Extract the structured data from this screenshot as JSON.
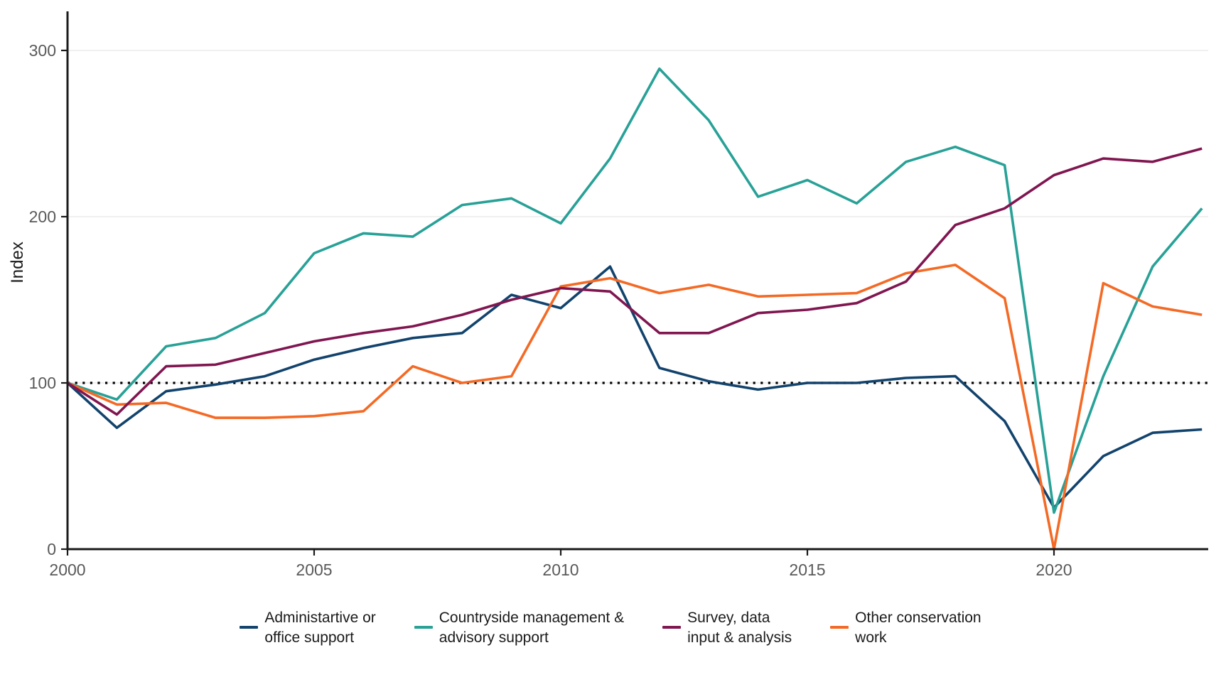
{
  "chart_data": {
    "type": "line",
    "title": "",
    "xlabel": "",
    "ylabel": "Index",
    "x": [
      2000,
      2001,
      2002,
      2003,
      2004,
      2005,
      2006,
      2007,
      2008,
      2009,
      2010,
      2011,
      2012,
      2013,
      2014,
      2015,
      2016,
      2017,
      2018,
      2019,
      2020,
      2021,
      2022,
      2023
    ],
    "x_ticks": [
      2000,
      2005,
      2010,
      2015,
      2020
    ],
    "y_ticks": [
      0,
      100,
      200,
      300
    ],
    "xlim": [
      2000,
      2023
    ],
    "ylim": [
      0,
      310
    ],
    "grid": "horizontal-major-only",
    "legend_position": "bottom",
    "reference_line": {
      "y": 100,
      "style": "dotted",
      "color": "#000000"
    },
    "series": [
      {
        "id": "administrative-or-office-support",
        "name": "Administartive or office support",
        "legend_label": "Administartive or\n office support",
        "color": "#12436D",
        "values": [
          100,
          73,
          95,
          99,
          104,
          114,
          121,
          127,
          130,
          153,
          145,
          170,
          109,
          101,
          96,
          100,
          100,
          103,
          104,
          77,
          25,
          56,
          70,
          72
        ]
      },
      {
        "id": "countryside-management-advisory-support",
        "name": "Countryside management & advisory support",
        "legend_label": "Countryside management &\n advisory support",
        "color": "#28A197",
        "values": [
          100,
          90,
          122,
          127,
          142,
          178,
          190,
          188,
          207,
          211,
          196,
          235,
          289,
          258,
          212,
          222,
          208,
          233,
          242,
          231,
          22,
          104,
          170,
          205
        ]
      },
      {
        "id": "survey-data-input-analysis",
        "name": "Survey, data input & analysis",
        "legend_label": "Survey, data\n input & analysis",
        "color": "#801650",
        "values": [
          100,
          81,
          110,
          111,
          118,
          125,
          130,
          134,
          141,
          150,
          157,
          155,
          130,
          130,
          142,
          144,
          148,
          161,
          195,
          205,
          225,
          235,
          233,
          241
        ]
      },
      {
        "id": "other-conservation-work",
        "name": "Other conservation work",
        "legend_label": "Other conservation\n work",
        "color": "#F46A25",
        "values": [
          100,
          87,
          88,
          79,
          79,
          80,
          83,
          110,
          100,
          104,
          158,
          163,
          154,
          159,
          152,
          153,
          154,
          166,
          171,
          151,
          0,
          160,
          146,
          141
        ]
      }
    ],
    "draw_order": [
      "administrative-or-office-support",
      "countryside-management-advisory-support",
      "other-conservation-work",
      "survey-data-input-analysis"
    ]
  },
  "style_colors": {
    "axis_line": "#1a1a1a",
    "tick_mark": "#1a1a1a",
    "tick_label": "#595959",
    "grid_line": "#ebebeb",
    "axis_title": "#1a1a1a",
    "background": "#ffffff"
  }
}
